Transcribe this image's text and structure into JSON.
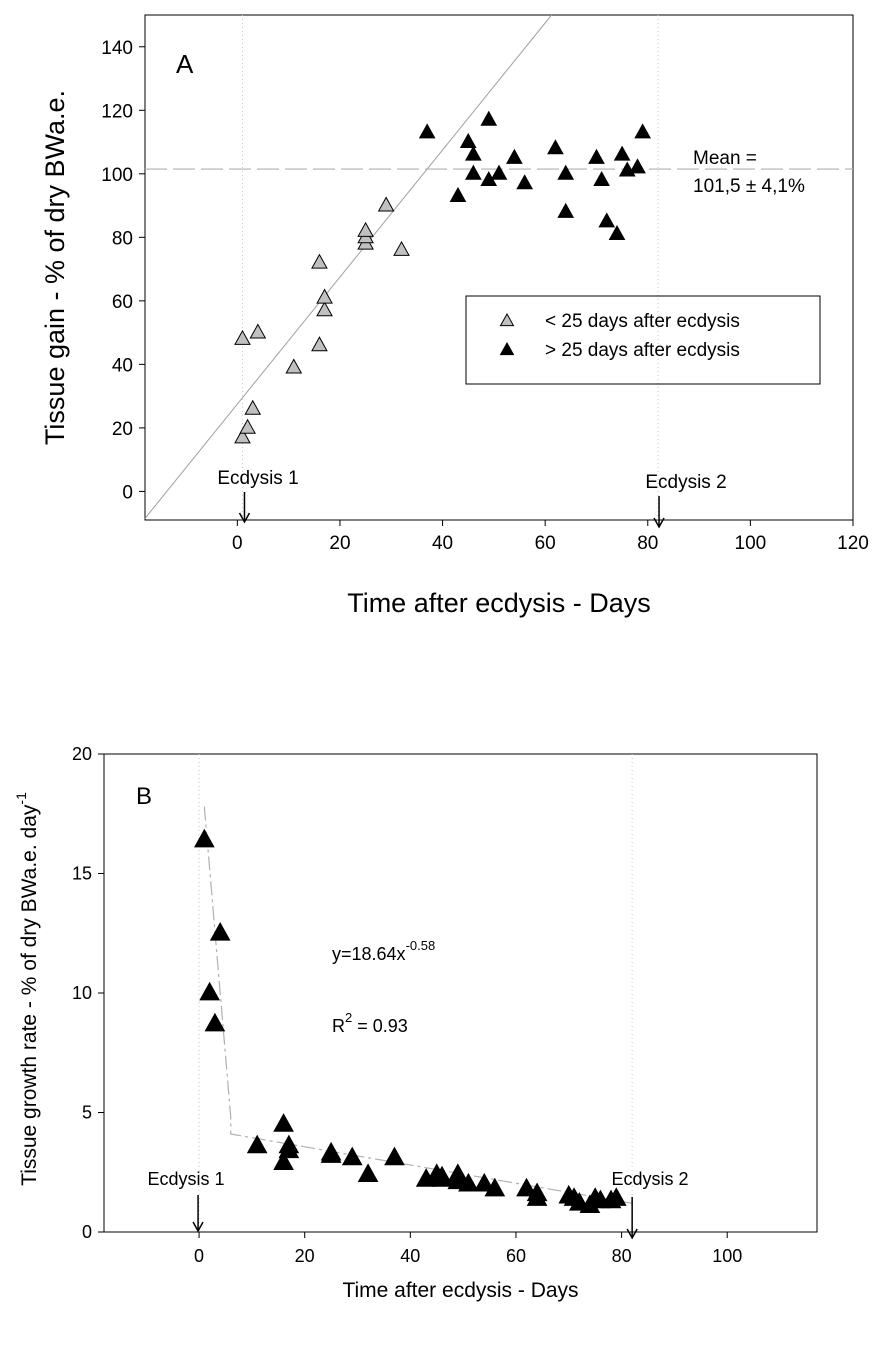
{
  "chart_data": [
    {
      "type": "scatter",
      "panel_label": "A",
      "xlabel": "Time after ecdysis - Days",
      "ylabel": "Tissue gain - % of dry BWa.e.",
      "xlim": [
        -18,
        120
      ],
      "ylim": [
        -9,
        150
      ],
      "xticks": [
        0,
        20,
        40,
        60,
        80,
        100,
        120
      ],
      "yticks": [
        0,
        20,
        40,
        60,
        80,
        100,
        120,
        140
      ],
      "grid": false,
      "legend_position": "center-right",
      "series": [
        {
          "name": "< 25 days after ecdysis",
          "color": "#c0c0c0",
          "points": [
            [
              1,
              17
            ],
            [
              2,
              20
            ],
            [
              3,
              26
            ],
            [
              1,
              48
            ],
            [
              4,
              50
            ],
            [
              11,
              39
            ],
            [
              16,
              46
            ],
            [
              16,
              72
            ],
            [
              17,
              57
            ],
            [
              17,
              61
            ],
            [
              25,
              78
            ],
            [
              25,
              80
            ],
            [
              25,
              82
            ],
            [
              29,
              90
            ],
            [
              32,
              76
            ]
          ]
        },
        {
          "name": "> 25 days after ecdysis",
          "color": "#000000",
          "points": [
            [
              37,
              113
            ],
            [
              43,
              93
            ],
            [
              45,
              110
            ],
            [
              46,
              106
            ],
            [
              46,
              100
            ],
            [
              49,
              117
            ],
            [
              49,
              98
            ],
            [
              51,
              100
            ],
            [
              54,
              105
            ],
            [
              56,
              97
            ],
            [
              62,
              108
            ],
            [
              64,
              100
            ],
            [
              64,
              88
            ],
            [
              70,
              105
            ],
            [
              71,
              98
            ],
            [
              72,
              85
            ],
            [
              74,
              81
            ],
            [
              75,
              106
            ],
            [
              76,
              101
            ],
            [
              78,
              102
            ],
            [
              79,
              113
            ]
          ]
        }
      ],
      "regression_line": {
        "intercept": 27.5,
        "slope": 2.0
      },
      "mean_line": {
        "value": 101.5
      },
      "annotations": {
        "mean_line1": "Mean =",
        "mean_line2": "101,5 ± 4,1%",
        "ecdysis1": {
          "text": "Ecdysis 1",
          "x": 1
        },
        "ecdysis2": {
          "text": "Ecdysis 2",
          "x": 82
        }
      }
    },
    {
      "type": "scatter",
      "panel_label": "B",
      "xlabel": "Time after ecdysis - Days",
      "ylabel": "Tissue growth rate - % of dry BWa.e. day",
      "ylabel_sup": "-1",
      "xlim": [
        -18,
        117
      ],
      "ylim": [
        0,
        20
      ],
      "xticks": [
        0,
        20,
        40,
        60,
        80,
        100
      ],
      "yticks": [
        0,
        5,
        10,
        15,
        20
      ],
      "grid": false,
      "series": [
        {
          "color": "#000000",
          "points": [
            [
              1,
              16.4
            ],
            [
              4,
              12.5
            ],
            [
              2,
              10.0
            ],
            [
              3,
              8.7
            ],
            [
              11,
              3.6
            ],
            [
              16,
              4.5
            ],
            [
              16,
              2.9
            ],
            [
              17,
              3.6
            ],
            [
              17,
              3.4
            ],
            [
              25,
              3.2
            ],
            [
              25,
              3.3
            ],
            [
              29,
              3.1
            ],
            [
              32,
              2.4
            ],
            [
              37,
              3.1
            ],
            [
              43,
              2.2
            ],
            [
              45,
              2.4
            ],
            [
              46,
              2.3
            ],
            [
              46,
              2.2
            ],
            [
              49,
              2.4
            ],
            [
              49,
              2.1
            ],
            [
              51,
              2.0
            ],
            [
              54,
              2.0
            ],
            [
              56,
              1.8
            ],
            [
              62,
              1.8
            ],
            [
              64,
              1.6
            ],
            [
              64,
              1.4
            ],
            [
              70,
              1.5
            ],
            [
              71,
              1.4
            ],
            [
              72,
              1.2
            ],
            [
              74,
              1.1
            ],
            [
              75,
              1.4
            ],
            [
              76,
              1.3
            ],
            [
              78,
              1.3
            ],
            [
              79,
              1.4
            ]
          ]
        }
      ],
      "fit_line": [
        [
          1,
          17.8
        ],
        [
          6,
          4.8
        ],
        [
          6,
          4.1
        ],
        [
          82,
          1.2
        ]
      ],
      "annotations": {
        "equation_base": "y=18.64x",
        "equation_exp": "-0.58",
        "r2_prefix": "R",
        "r2_exp": "2",
        "r2_value": " = 0.93",
        "ecdysis1": {
          "text": "Ecdysis 1",
          "x": 0
        },
        "ecdysis2": {
          "text": "Ecdysis 2",
          "x": 82
        }
      }
    }
  ]
}
